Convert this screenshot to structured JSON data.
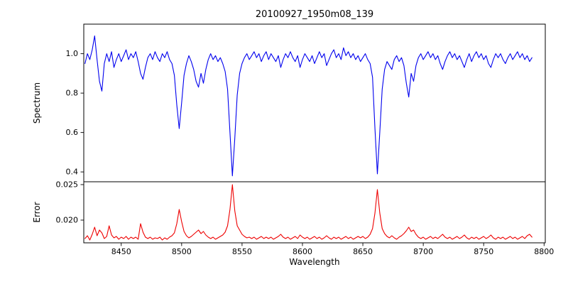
{
  "chart_data": {
    "type": "line",
    "title": "20100927_1950m08_139",
    "xlabel": "Wavelength",
    "x_start": 8420,
    "x_step": 2,
    "xlim": [
      8419,
      8801
    ],
    "xticks": [
      {
        "v": 8450,
        "label": "8450"
      },
      {
        "v": 8500,
        "label": "8500"
      },
      {
        "v": 8550,
        "label": "8550"
      },
      {
        "v": 8600,
        "label": "8600"
      },
      {
        "v": 8650,
        "label": "8650"
      },
      {
        "v": 8700,
        "label": "8700"
      },
      {
        "v": 8750,
        "label": "8750"
      },
      {
        "v": 8800,
        "label": "8800"
      }
    ],
    "grid": false,
    "legend": "none",
    "panels": [
      {
        "name": "spectrum",
        "ylabel": "Spectrum",
        "color": "#0000ee",
        "ylim": [
          0.35,
          1.15
        ],
        "yticks": [
          {
            "v": 0.4,
            "label": "0.4"
          },
          {
            "v": 0.6,
            "label": "0.6"
          },
          {
            "v": 0.8,
            "label": "0.8"
          },
          {
            "v": 1.0,
            "label": "1.0"
          }
        ],
        "values": [
          0.95,
          1.0,
          0.97,
          1.02,
          1.09,
          0.97,
          0.86,
          0.81,
          0.95,
          1.0,
          0.96,
          1.01,
          0.93,
          0.97,
          1.0,
          0.96,
          0.99,
          1.02,
          0.97,
          1.0,
          0.98,
          1.01,
          0.96,
          0.9,
          0.87,
          0.93,
          0.98,
          1.0,
          0.97,
          1.01,
          0.98,
          0.96,
          1.0,
          0.98,
          1.01,
          0.97,
          0.95,
          0.89,
          0.74,
          0.62,
          0.75,
          0.89,
          0.95,
          0.99,
          0.96,
          0.92,
          0.86,
          0.83,
          0.9,
          0.85,
          0.92,
          0.97,
          1.0,
          0.97,
          0.99,
          0.96,
          0.98,
          0.95,
          0.91,
          0.82,
          0.6,
          0.38,
          0.57,
          0.79,
          0.9,
          0.95,
          0.98,
          1.0,
          0.97,
          0.99,
          1.01,
          0.98,
          1.0,
          0.96,
          0.99,
          1.01,
          0.97,
          1.0,
          0.98,
          0.96,
          0.99,
          0.93,
          0.97,
          1.0,
          0.98,
          1.01,
          0.98,
          0.96,
          0.99,
          0.93,
          0.97,
          1.0,
          0.98,
          0.96,
          0.99,
          0.95,
          0.98,
          1.01,
          0.98,
          1.0,
          0.94,
          0.97,
          1.0,
          1.02,
          0.98,
          1.0,
          0.97,
          1.03,
          0.99,
          1.01,
          0.98,
          1.0,
          0.97,
          0.99,
          0.96,
          0.98,
          1.0,
          0.97,
          0.95,
          0.88,
          0.62,
          0.39,
          0.6,
          0.82,
          0.92,
          0.96,
          0.94,
          0.92,
          0.97,
          0.99,
          0.96,
          0.98,
          0.94,
          0.85,
          0.78,
          0.9,
          0.86,
          0.94,
          0.98,
          1.0,
          0.97,
          0.99,
          1.01,
          0.98,
          1.0,
          0.97,
          0.99,
          0.95,
          0.92,
          0.96,
          0.99,
          1.01,
          0.98,
          1.0,
          0.97,
          0.99,
          0.96,
          0.93,
          0.97,
          1.0,
          0.96,
          0.99,
          1.01,
          0.98,
          1.0,
          0.97,
          0.99,
          0.95,
          0.93,
          0.97,
          1.0,
          0.98,
          1.0,
          0.97,
          0.95,
          0.98,
          1.0,
          0.97,
          0.99,
          1.01,
          0.98,
          1.0,
          0.97,
          0.99,
          0.96,
          0.98
        ]
      },
      {
        "name": "error",
        "ylabel": "Error",
        "color": "#ee0000",
        "ylim": [
          0.0168,
          0.0254
        ],
        "yticks": [
          {
            "v": 0.02,
            "label": "0.020"
          },
          {
            "v": 0.025,
            "label": "0.025"
          }
        ],
        "values": [
          0.0174,
          0.0178,
          0.0172,
          0.018,
          0.019,
          0.0178,
          0.0186,
          0.0182,
          0.0174,
          0.0177,
          0.0192,
          0.0179,
          0.0175,
          0.0177,
          0.0173,
          0.0176,
          0.0174,
          0.0177,
          0.0173,
          0.0176,
          0.0174,
          0.0176,
          0.0173,
          0.0195,
          0.0183,
          0.0176,
          0.0174,
          0.0176,
          0.0173,
          0.0175,
          0.0174,
          0.0176,
          0.0172,
          0.0175,
          0.0173,
          0.0176,
          0.0178,
          0.0182,
          0.0195,
          0.0215,
          0.0198,
          0.0184,
          0.0178,
          0.0175,
          0.0177,
          0.018,
          0.0183,
          0.0186,
          0.0181,
          0.0184,
          0.0179,
          0.0176,
          0.0174,
          0.0176,
          0.0173,
          0.0175,
          0.0177,
          0.0179,
          0.0183,
          0.0192,
          0.0215,
          0.025,
          0.0213,
          0.0192,
          0.0186,
          0.018,
          0.0177,
          0.0175,
          0.0176,
          0.0174,
          0.0176,
          0.0173,
          0.0175,
          0.0177,
          0.0174,
          0.0176,
          0.0174,
          0.0176,
          0.0173,
          0.0175,
          0.0177,
          0.018,
          0.0176,
          0.0174,
          0.0176,
          0.0173,
          0.0175,
          0.0177,
          0.0174,
          0.0179,
          0.0176,
          0.0174,
          0.0176,
          0.0173,
          0.0175,
          0.0177,
          0.0174,
          0.0176,
          0.0173,
          0.0175,
          0.0178,
          0.0175,
          0.0173,
          0.0176,
          0.0174,
          0.0176,
          0.0173,
          0.0175,
          0.0177,
          0.0174,
          0.0176,
          0.0173,
          0.0175,
          0.0177,
          0.0175,
          0.0177,
          0.0174,
          0.0176,
          0.018,
          0.0188,
          0.021,
          0.0243,
          0.021,
          0.0188,
          0.0181,
          0.0177,
          0.0175,
          0.0178,
          0.0175,
          0.0173,
          0.0176,
          0.0178,
          0.0181,
          0.0185,
          0.019,
          0.0184,
          0.0186,
          0.018,
          0.0176,
          0.0174,
          0.0176,
          0.0173,
          0.0175,
          0.0177,
          0.0174,
          0.0176,
          0.0174,
          0.0177,
          0.018,
          0.0176,
          0.0174,
          0.0176,
          0.0173,
          0.0175,
          0.0177,
          0.0174,
          0.0176,
          0.0179,
          0.0175,
          0.0173,
          0.0176,
          0.0174,
          0.0176,
          0.0173,
          0.0175,
          0.0177,
          0.0174,
          0.0176,
          0.0179,
          0.0175,
          0.0173,
          0.0176,
          0.0174,
          0.0176,
          0.0173,
          0.0175,
          0.0177,
          0.0174,
          0.0176,
          0.0173,
          0.0175,
          0.0177,
          0.0174,
          0.0178,
          0.018,
          0.0176
        ]
      }
    ]
  }
}
